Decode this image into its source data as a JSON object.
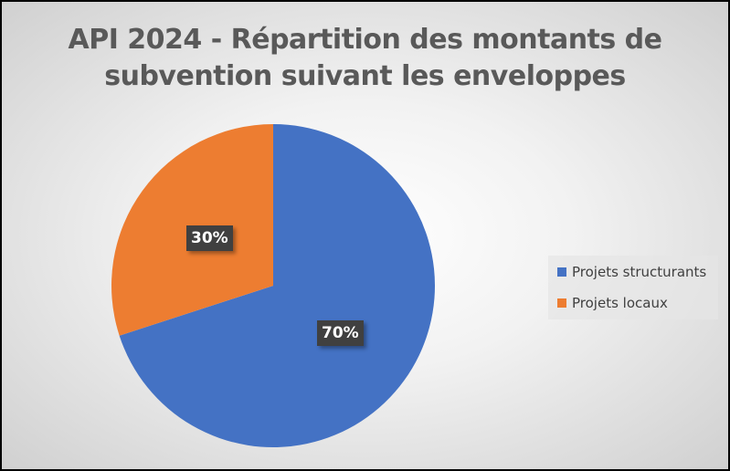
{
  "chart_data": {
    "type": "pie",
    "title_line1": "API 2024 - Répartition des montants de",
    "title_line2": "subvention suivant les enveloppes",
    "slices": [
      {
        "label": "Projets structurants",
        "value": 70,
        "data_label": "70%",
        "color": "#4472C4"
      },
      {
        "label": "Projets locaux",
        "value": 30,
        "data_label": "30%",
        "color": "#ED7D31"
      }
    ],
    "start_angle_deg": 0,
    "direction": "clockwise",
    "legend_position": "right"
  }
}
